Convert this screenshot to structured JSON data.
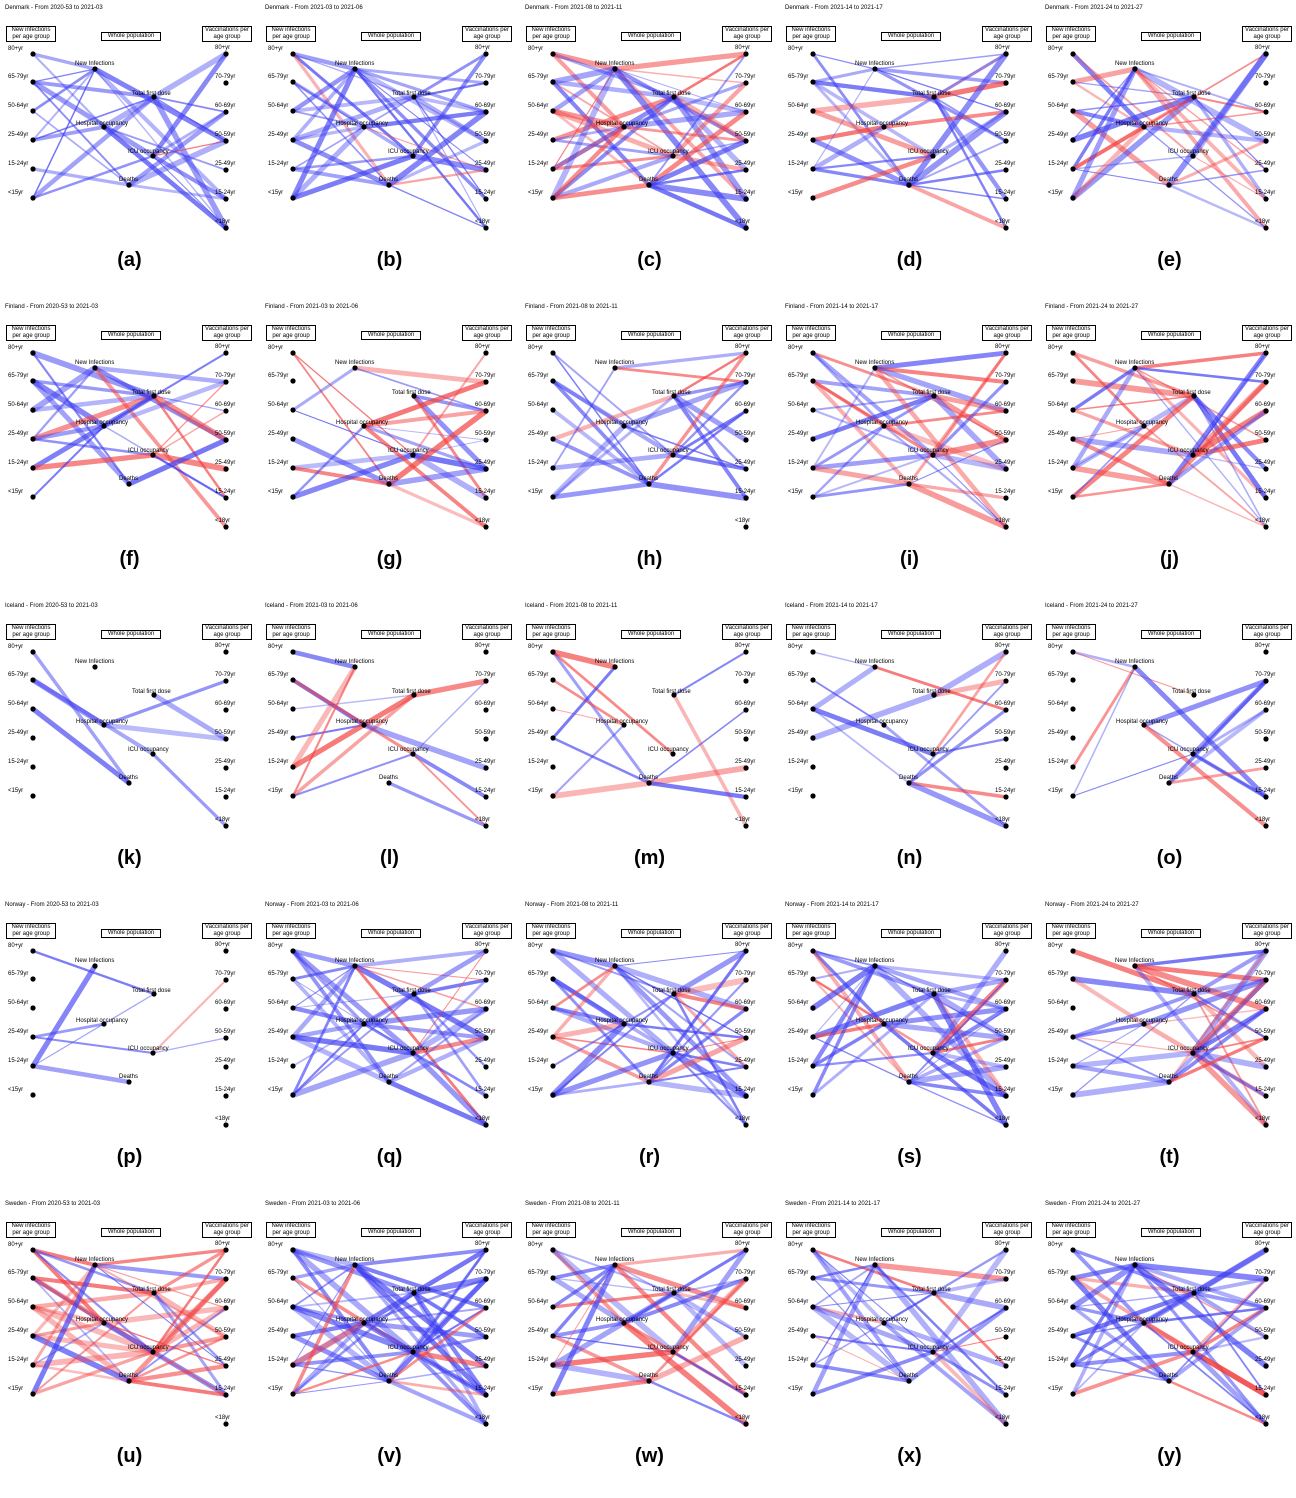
{
  "box_labels": {
    "left": "New infections per age group",
    "middle": "Whole population",
    "right": "Vaccinations per age group"
  },
  "left_nodes": [
    "80+yr",
    "65-79yr",
    "50-64yr",
    "25-49yr",
    "15-24yr",
    "<15yr"
  ],
  "middle_nodes": [
    "New Infections",
    "Total first dose",
    "Hospital occupancy",
    "ICU occupancy",
    "Deaths"
  ],
  "right_nodes": [
    "80+yr",
    "70-79yr",
    "60-69yr",
    "50-59yr",
    "25-49yr",
    "15-24yr",
    "<18yr"
  ],
  "colors": {
    "positive_edge": "#3d3df2",
    "negative_edge": "#f24040",
    "node": "#000000"
  },
  "panels": [
    {
      "title": "Denmark - From 2020-53 to 2021-03",
      "caption": "(a)"
    },
    {
      "title": "Denmark - From 2021-03 to 2021-06",
      "caption": "(b)"
    },
    {
      "title": "Denmark - From 2021-08 to 2021-11",
      "caption": "(c)"
    },
    {
      "title": "Denmark - From 2021-14 to 2021-17",
      "caption": "(d)"
    },
    {
      "title": "Denmark - From 2021-24 to 2021-27",
      "caption": "(e)"
    },
    {
      "title": "Finland - From 2020-53 to 2021-03",
      "caption": "(f)"
    },
    {
      "title": "Finland - From 2021-03 to 2021-06",
      "caption": "(g)"
    },
    {
      "title": "Finland - From 2021-08 to 2021-11",
      "caption": "(h)"
    },
    {
      "title": "Finland - From 2021-14 to 2021-17",
      "caption": "(i)"
    },
    {
      "title": "Finland - From 2021-24 to 2021-27",
      "caption": "(j)"
    },
    {
      "title": "Iceland - From 2020-53 to 2021-03",
      "caption": "(k)"
    },
    {
      "title": "Iceland - From 2021-03 to 2021-06",
      "caption": "(l)"
    },
    {
      "title": "Iceland - From 2021-08 to 2021-11",
      "caption": "(m)"
    },
    {
      "title": "Iceland - From 2021-14 to 2021-17",
      "caption": "(n)"
    },
    {
      "title": "Iceland - From 2021-24 to 2021-27",
      "caption": "(o)"
    },
    {
      "title": "Norway - From 2020-53 to 2021-03",
      "caption": "(p)"
    },
    {
      "title": "Norway - From 2021-03 to 2021-06",
      "caption": "(q)"
    },
    {
      "title": "Norway - From 2021-08 to 2021-11",
      "caption": "(r)"
    },
    {
      "title": "Norway - From 2021-14 to 2021-17",
      "caption": "(s)"
    },
    {
      "title": "Norway - From 2021-24 to 2021-27",
      "caption": "(t)"
    },
    {
      "title": "Sweden - From 2020-53 to 2021-03",
      "caption": "(u)"
    },
    {
      "title": "Sweden - From 2021-03 to 2021-06",
      "caption": "(v)"
    },
    {
      "title": "Sweden - From 2021-08 to 2021-11",
      "caption": "(w)"
    },
    {
      "title": "Sweden - From 2021-14 to 2021-17",
      "caption": "(x)"
    },
    {
      "title": "Sweden - From 2021-24 to 2021-27",
      "caption": "(y)"
    }
  ]
}
